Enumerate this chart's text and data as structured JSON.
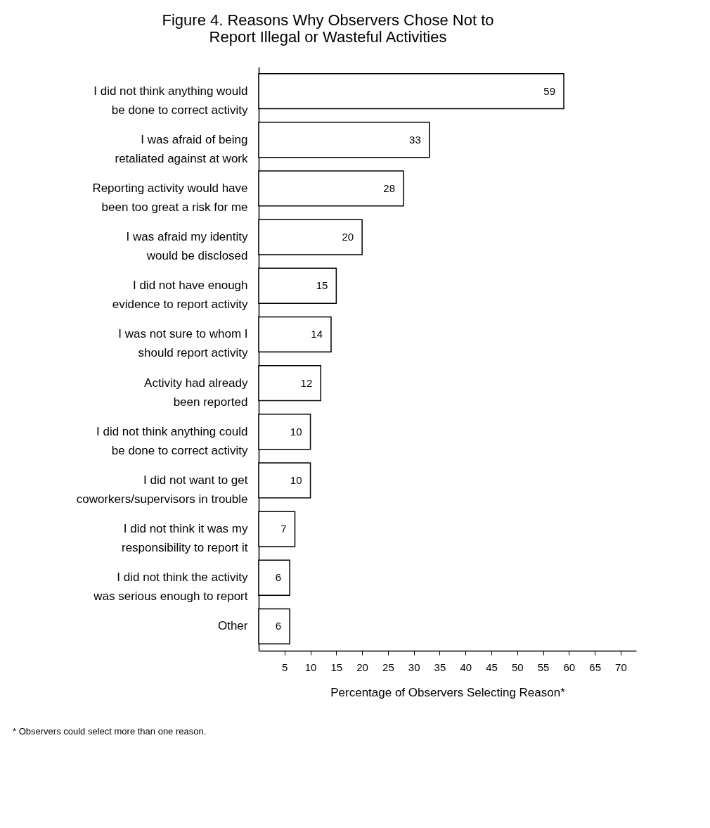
{
  "chart_data": {
    "type": "bar",
    "orientation": "horizontal",
    "title": "Figure 4.  Reasons Why Observers Chose Not to\nReport Illegal or Wasteful Activities",
    "xlabel": "Percentage of Observers Selecting Reason*",
    "categories": [
      "I did not think anything would be done to correct activity",
      "I was afraid of being retaliated against at work",
      "Reporting activity would have been too great a risk for me",
      "I was afraid my identity would be disclosed",
      "I did not have enough evidence to report activity",
      "I was not sure to whom I should report activity",
      "Activity had already been reported",
      "I did not think anything could be done to correct activity",
      "I did not want to get coworkers/supervisors in trouble",
      "I did not think it was my responsibility to report it",
      "I did not think the activity was serious enough to report",
      "Other"
    ],
    "values": [
      59,
      33,
      28,
      20,
      15,
      14,
      12,
      10,
      10,
      7,
      6,
      6
    ],
    "color": "#ffffff",
    "data_labels": true,
    "grid": false,
    "xlim": [
      0,
      73
    ],
    "xticks": [
      5,
      10,
      15,
      20,
      25,
      30,
      35,
      40,
      45,
      50,
      55,
      60,
      65,
      70
    ],
    "annotations": [
      "* Observers could select more than one reason."
    ]
  }
}
